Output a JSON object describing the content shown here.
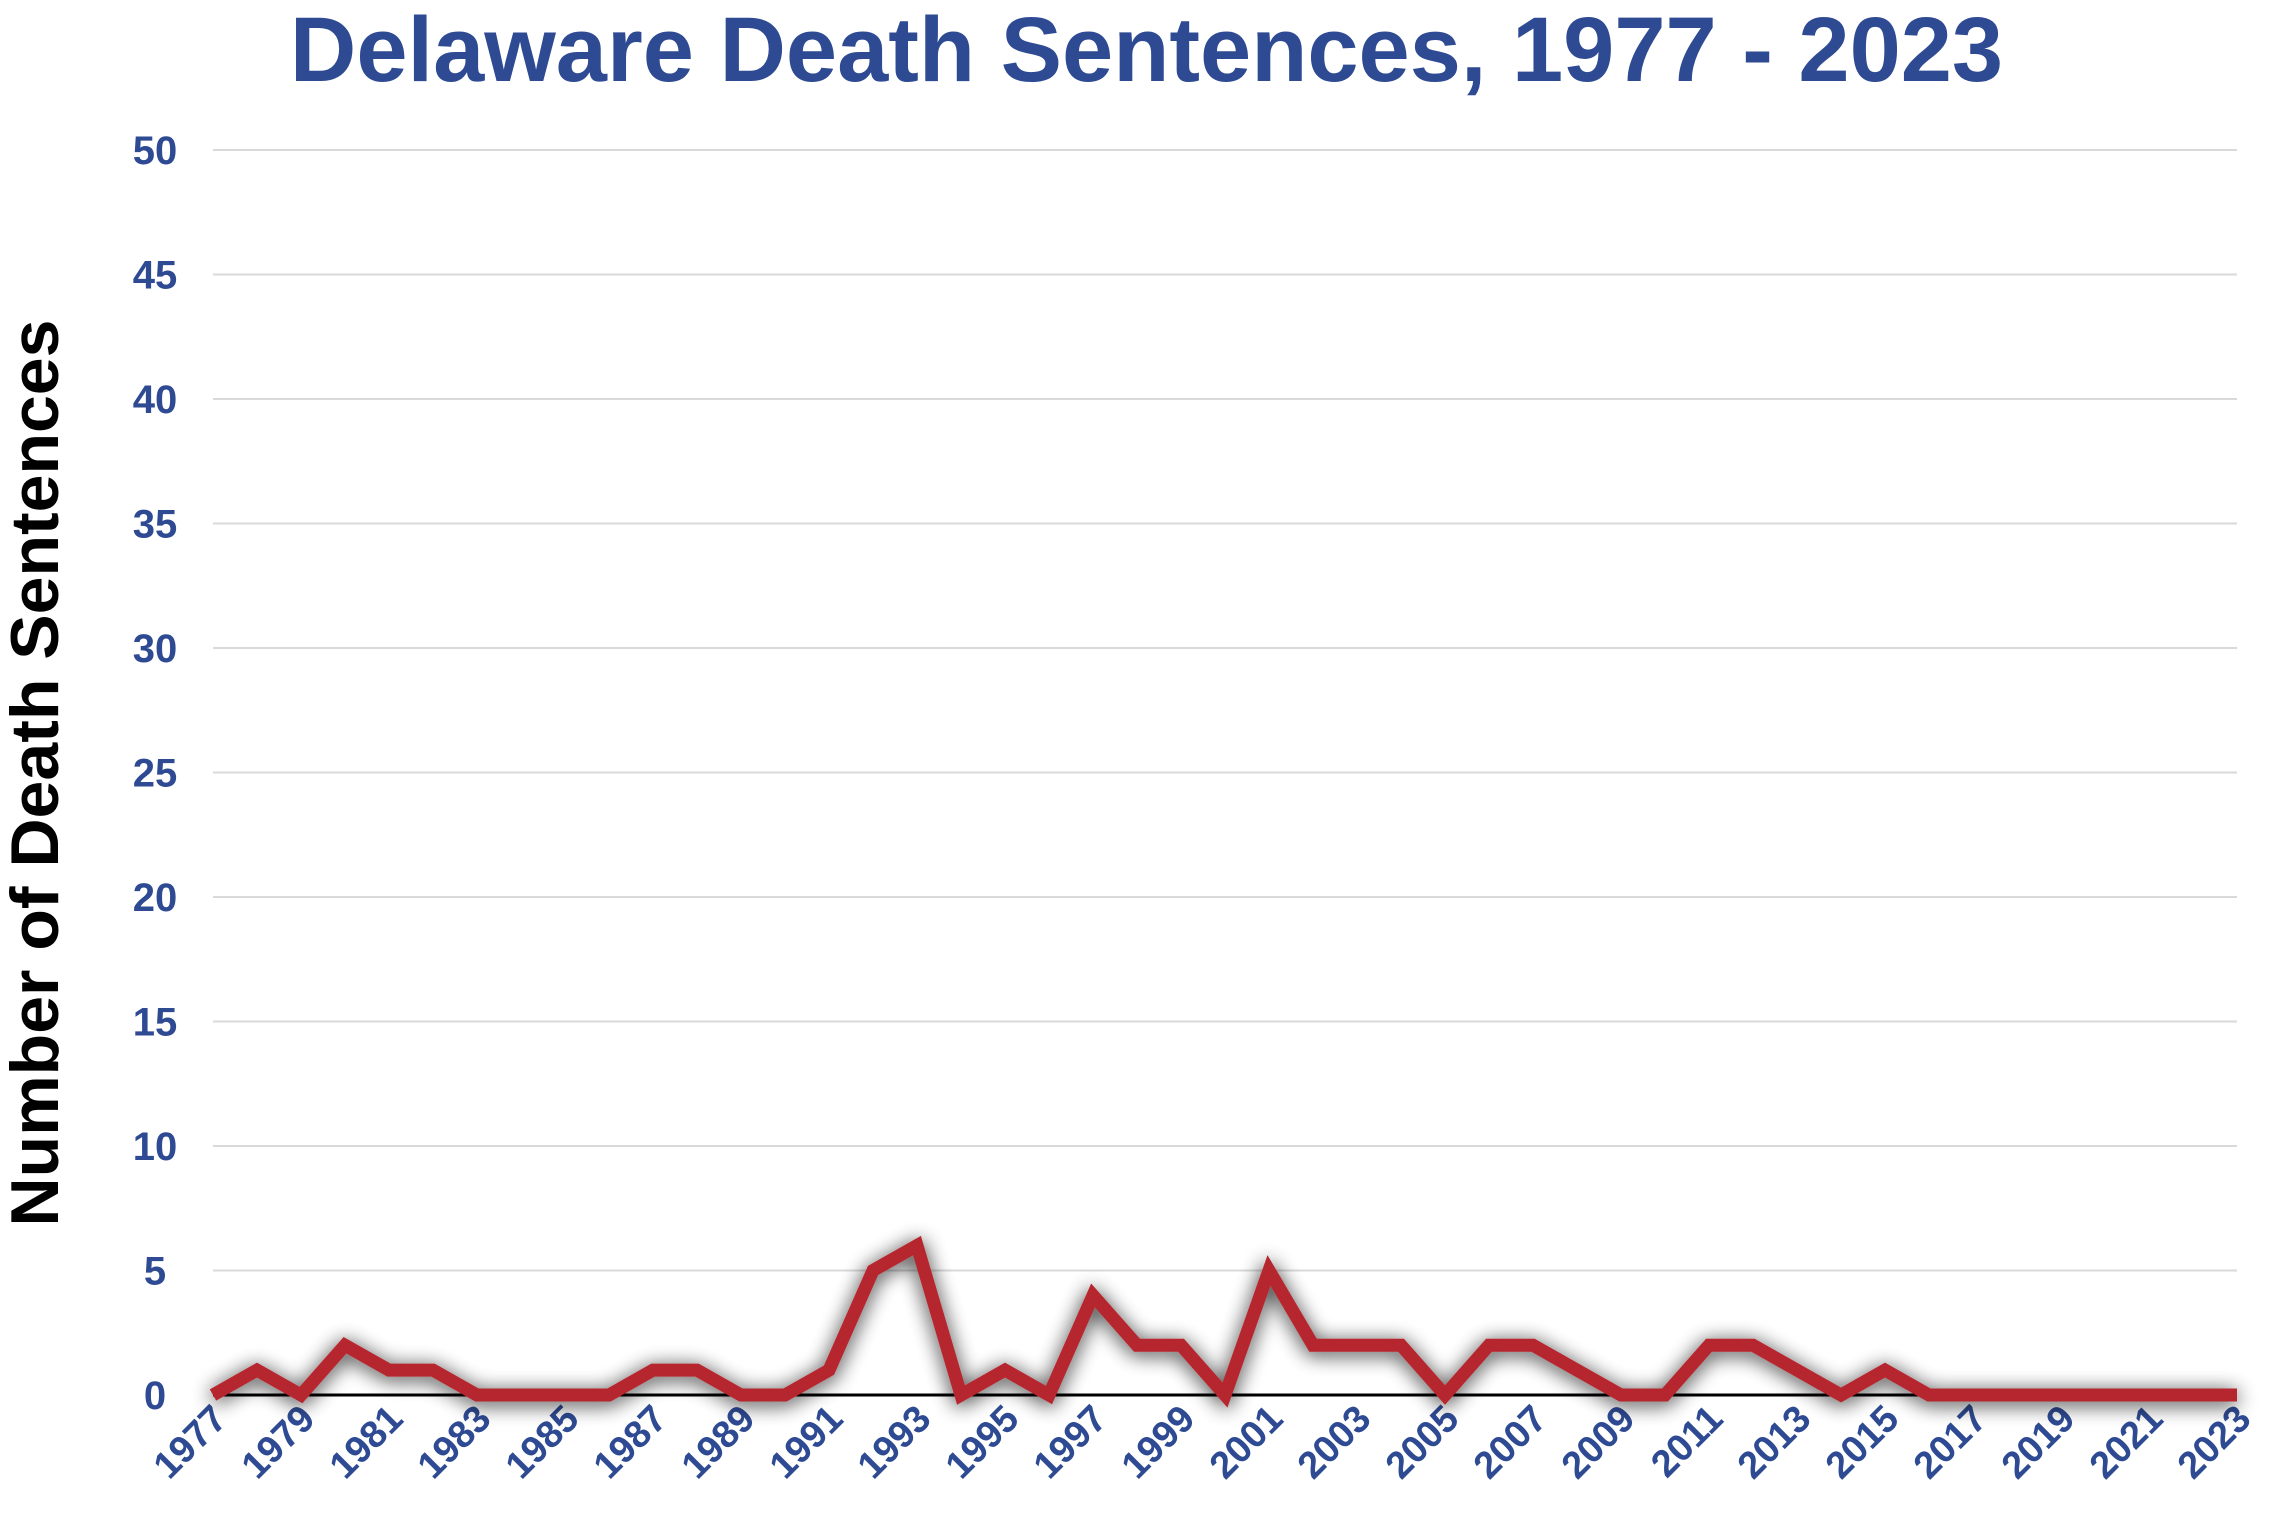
{
  "chart_data": {
    "type": "line",
    "title": "Delaware Death Sentences, 1977 - 2023",
    "xlabel": "",
    "ylabel": "Number of Death Sentences",
    "x": [
      1977,
      1978,
      1979,
      1980,
      1981,
      1982,
      1983,
      1984,
      1985,
      1986,
      1987,
      1988,
      1989,
      1990,
      1991,
      1992,
      1993,
      1994,
      1995,
      1996,
      1997,
      1998,
      1999,
      2000,
      2001,
      2002,
      2003,
      2004,
      2005,
      2006,
      2007,
      2008,
      2009,
      2010,
      2011,
      2012,
      2013,
      2014,
      2015,
      2016,
      2017,
      2018,
      2019,
      2020,
      2021,
      2022,
      2023
    ],
    "x_tick_labels": [
      "1977",
      "1979",
      "1981",
      "1983",
      "1985",
      "1987",
      "1989",
      "1991",
      "1993",
      "1995",
      "1997",
      "1999",
      "2001",
      "2003",
      "2005",
      "2007",
      "2009",
      "2011",
      "2013",
      "2015",
      "2017",
      "2019",
      "2021",
      "2023"
    ],
    "series": [
      {
        "values": [
          0,
          1,
          0,
          2,
          1,
          1,
          0,
          0,
          0,
          0,
          1,
          1,
          0,
          0,
          1,
          5,
          6,
          0,
          1,
          0,
          4,
          2,
          2,
          0,
          5,
          2,
          2,
          2,
          0,
          2,
          2,
          1,
          0,
          0,
          2,
          2,
          1,
          0,
          1,
          0,
          0,
          0,
          0,
          0,
          0,
          0,
          0
        ]
      }
    ],
    "ylim": [
      0,
      50
    ],
    "y_ticks": [
      0,
      5,
      10,
      15,
      20,
      25,
      30,
      35,
      40,
      45,
      50
    ],
    "grid": true,
    "legend": "none",
    "colors": {
      "line": "#b5262f",
      "text": "#2e4a93",
      "grid": "#d9d9d9",
      "axis": "#000000"
    }
  }
}
